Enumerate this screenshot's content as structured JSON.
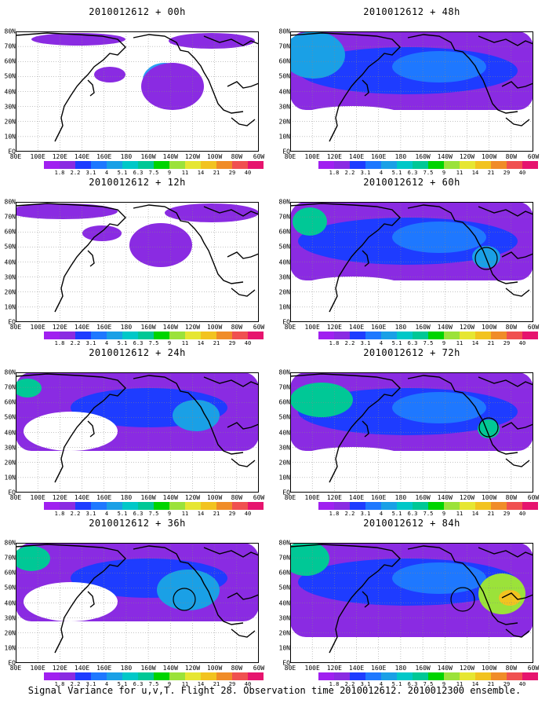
{
  "panels": [
    {
      "title": "2010012612 + 00h",
      "circles": [],
      "blobs": [
        [
          190,
          62,
          28,
          22,
          "#2a9df4"
        ],
        [
          180,
          60,
          12,
          10,
          "#00d400"
        ],
        [
          200,
          70,
          40,
          30,
          "#8a2be2"
        ]
      ],
      "streaks": [],
      "bg": "sparse"
    },
    {
      "title": "2010012612 + 48h",
      "circles": [],
      "blobs": [
        [
          25,
          30,
          20,
          16,
          "#00c896"
        ],
        [
          30,
          30,
          40,
          30,
          "#1aa0e6"
        ]
      ],
      "streaks": [],
      "bg": "band"
    },
    {
      "title": "2010012612 + 12h",
      "circles": [],
      "blobs": [
        [
          185,
          50,
          26,
          20,
          "#1aa0e6"
        ],
        [
          185,
          55,
          40,
          28,
          "#8a2be2"
        ]
      ],
      "streaks": [],
      "bg": "sparse2"
    },
    {
      "title": "2010012612 + 60h",
      "circles": [
        [
          250,
          72,
          14
        ]
      ],
      "blobs": [
        [
          25,
          25,
          22,
          18,
          "#00c896"
        ],
        [
          250,
          70,
          18,
          14,
          "#1aa0e6"
        ]
      ],
      "streaks": [],
      "bg": "band"
    },
    {
      "title": "2010012612 + 24h",
      "circles": [],
      "blobs": [
        [
          15,
          20,
          18,
          12,
          "#00c896"
        ],
        [
          230,
          55,
          30,
          20,
          "#1aa0e6"
        ]
      ],
      "streaks": [],
      "bg": "band2"
    },
    {
      "title": "2010012612 + 72h",
      "circles": [
        [
          253,
          70,
          12
        ]
      ],
      "blobs": [
        [
          40,
          35,
          40,
          22,
          "#00c896"
        ],
        [
          253,
          72,
          14,
          12,
          "#00c896"
        ]
      ],
      "streaks": [],
      "bg": "band"
    },
    {
      "title": "2010012612 + 36h",
      "circles": [
        [
          215,
          72,
          14
        ]
      ],
      "blobs": [
        [
          20,
          20,
          24,
          16,
          "#00c896"
        ],
        [
          220,
          60,
          40,
          26,
          "#1aa0e6"
        ]
      ],
      "streaks": [],
      "bg": "band2"
    },
    {
      "title": "2010012612 + 84h",
      "circles": [
        [
          220,
          72,
          15
        ]
      ],
      "blobs": [
        [
          20,
          20,
          30,
          22,
          "#00c896"
        ],
        [
          270,
          65,
          30,
          26,
          "#9be23a"
        ],
        [
          280,
          70,
          14,
          10,
          "#f2c320"
        ]
      ],
      "streaks": [],
      "bg": "band3"
    }
  ],
  "lat_labels": [
    "80N",
    "70N",
    "60N",
    "50N",
    "40N",
    "30N",
    "20N",
    "10N",
    "EQ"
  ],
  "lon_labels": [
    "80E",
    "100E",
    "120E",
    "140E",
    "160E",
    "180",
    "160W",
    "140W",
    "120W",
    "100W",
    "80W",
    "60W"
  ],
  "colorbar": {
    "labels": [
      "1.8",
      "2.2",
      "3.1",
      "4",
      "5.1",
      "6.3",
      "7.5",
      "9",
      "11",
      "14",
      "21",
      "29",
      "40"
    ],
    "colors": [
      "#a020f0",
      "#8a2be2",
      "#1e3cff",
      "#1e78ff",
      "#1aa0e6",
      "#00c8c8",
      "#00c896",
      "#00d400",
      "#9be23a",
      "#e6e632",
      "#f2c320",
      "#f08c28",
      "#f05050",
      "#e6146e"
    ]
  },
  "footer": "Signal Variance for u,v,T. Flight 28. Observation time 2010012612. 2010012300 ensemble."
}
